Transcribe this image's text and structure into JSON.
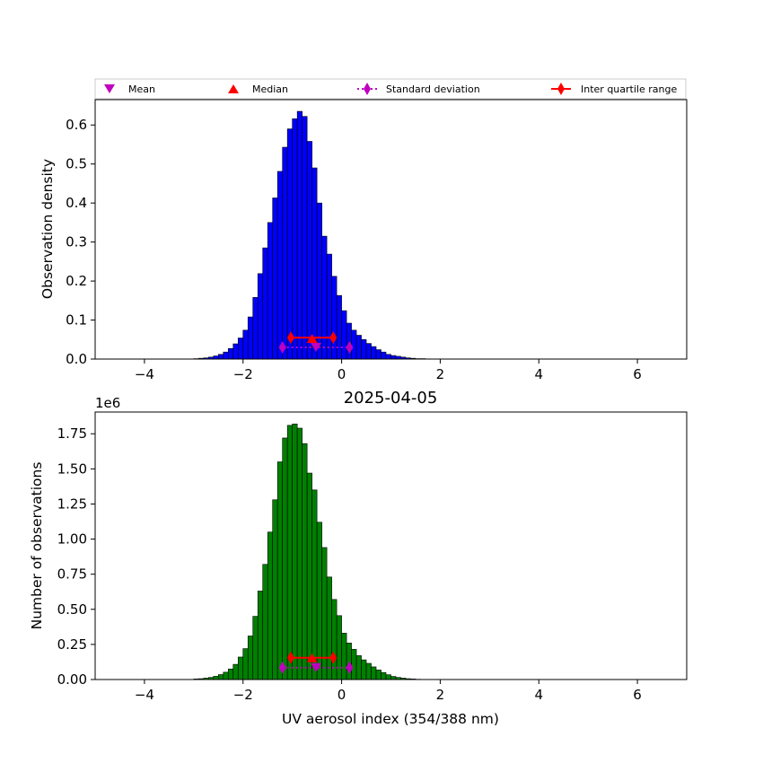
{
  "chart_data": [
    {
      "type": "bar",
      "ylabel": "Observation density",
      "xlim": [
        -5,
        7
      ],
      "ylim": [
        0,
        0.665
      ],
      "xticks": [
        "−4",
        "−2",
        "0",
        "2",
        "4",
        "6"
      ],
      "xtick_values": [
        -4,
        -2,
        0,
        2,
        4,
        6
      ],
      "yticks": [
        "0.0",
        "0.1",
        "0.2",
        "0.3",
        "0.4",
        "0.5",
        "0.6"
      ],
      "ytick_values": [
        0,
        0.1,
        0.2,
        0.3,
        0.4,
        0.5,
        0.6
      ],
      "bar_color": "#0000ff",
      "bin_start": -3.0,
      "bin_width": 0.1,
      "values": [
        0.001,
        0.002,
        0.003,
        0.005,
        0.008,
        0.012,
        0.018,
        0.027,
        0.039,
        0.054,
        0.074,
        0.108,
        0.158,
        0.219,
        0.285,
        0.35,
        0.413,
        0.481,
        0.543,
        0.59,
        0.616,
        0.635,
        0.622,
        0.558,
        0.49,
        0.4,
        0.315,
        0.269,
        0.212,
        0.163,
        0.124,
        0.092,
        0.074,
        0.061,
        0.05,
        0.04,
        0.032,
        0.024,
        0.018,
        0.012,
        0.009,
        0.007,
        0.005,
        0.003,
        0.002,
        0.001,
        0.001,
        0.0005
      ],
      "stats": {
        "mean": {
          "x": -0.52,
          "y": 0.03
        },
        "median": {
          "x": -0.6,
          "y": 0.053
        },
        "std_range": [
          -1.2,
          0.16
        ],
        "std_y": 0.03,
        "iqr_range": [
          -1.03,
          -0.17
        ],
        "iqr_y": 0.055
      }
    },
    {
      "type": "bar",
      "title": "2025-04-05",
      "xlabel": "UV aerosol index (354/388 nm)",
      "ylabel": "Number of observations",
      "offset_label": "1e6",
      "xlim": [
        -5,
        7
      ],
      "ylim": [
        0,
        1.905
      ],
      "xticks": [
        "−4",
        "−2",
        "0",
        "2",
        "4",
        "6"
      ],
      "xtick_values": [
        -4,
        -2,
        0,
        2,
        4,
        6
      ],
      "yticks": [
        "0.00",
        "0.25",
        "0.50",
        "0.75",
        "1.00",
        "1.25",
        "1.50",
        "1.75"
      ],
      "ytick_values": [
        0,
        0.25,
        0.5,
        0.75,
        1.0,
        1.25,
        1.5,
        1.75
      ],
      "bar_color": "#008000",
      "bin_start": -3.0,
      "bin_width": 0.1,
      "values": [
        0.004,
        0.006,
        0.01,
        0.015,
        0.023,
        0.035,
        0.052,
        0.075,
        0.108,
        0.16,
        0.22,
        0.31,
        0.45,
        0.63,
        0.82,
        1.05,
        1.28,
        1.55,
        1.72,
        1.81,
        1.82,
        1.79,
        1.68,
        1.47,
        1.35,
        1.12,
        0.94,
        0.73,
        0.57,
        0.455,
        0.33,
        0.26,
        0.215,
        0.17,
        0.14,
        0.115,
        0.09,
        0.068,
        0.05,
        0.034,
        0.022,
        0.015,
        0.01,
        0.006,
        0.004,
        0.002,
        0.001,
        0.0005
      ],
      "stats": {
        "mean": {
          "x": -0.52,
          "y": 0.085
        },
        "median": {
          "x": -0.6,
          "y": 0.155
        },
        "std_range": [
          -1.2,
          0.16
        ],
        "std_y": 0.085,
        "iqr_range": [
          -1.03,
          -0.17
        ],
        "iqr_y": 0.155
      }
    }
  ],
  "legend": {
    "position": "top",
    "items": [
      {
        "label": "Mean",
        "marker": "triangle-down",
        "color": "#bf00bf"
      },
      {
        "label": "Median",
        "marker": "triangle-up",
        "color": "#ff0000"
      },
      {
        "label": "Standard deviation",
        "marker": "diamond-dotted-line",
        "color": "#bf00bf"
      },
      {
        "label": "Inter quartile range",
        "marker": "diamond-solid-line",
        "color": "#ff0000"
      }
    ]
  }
}
